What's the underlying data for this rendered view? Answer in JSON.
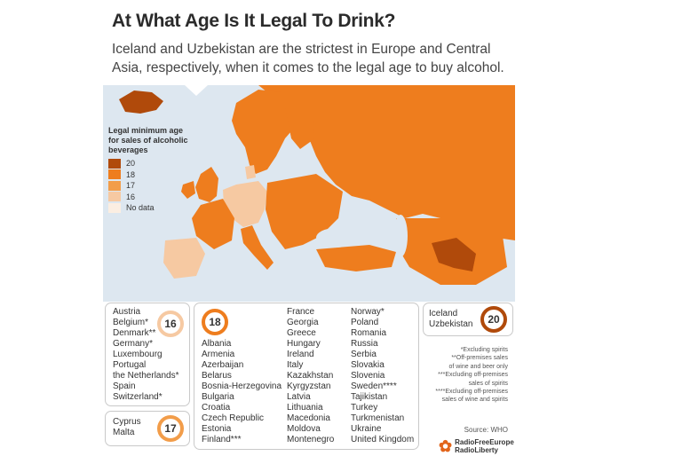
{
  "header": {
    "title": "At What Age Is It Legal To Drink?",
    "subtitle": "Iceland and Uzbekistan are the strictest in Europe and Central Asia, respectively, when it comes to the legal age to buy alcohol."
  },
  "legend": {
    "title": "Legal minimum age for sales of alcoholic beverages",
    "items": [
      {
        "label": "20",
        "color": "#b04a0b"
      },
      {
        "label": "18",
        "color": "#ee7d1e"
      },
      {
        "label": "17",
        "color": "#f29d4a"
      },
      {
        "label": "16",
        "color": "#f6c9a2"
      },
      {
        "label": "No data",
        "color": "#fbeee2"
      }
    ]
  },
  "groups": {
    "age16": {
      "age": "16",
      "countries": [
        "Austria",
        "Belgium*",
        "Denmark**",
        "Germany*",
        "Luxembourg",
        "Portugal",
        "the Netherlands*",
        "Spain",
        "Switzerland*"
      ]
    },
    "age17": {
      "age": "17",
      "countries": [
        "Cyprus",
        "Malta"
      ]
    },
    "age18": {
      "age": "18",
      "col1": [
        "Albania",
        "Armenia",
        "Azerbaijan",
        "Belarus",
        "Bosnia-Herzegovina",
        "Bulgaria",
        "Croatia",
        "Czech Republic",
        "Estonia",
        "Finland***"
      ],
      "col2": [
        "France",
        "Georgia",
        "Greece",
        "Hungary",
        "Ireland",
        "Italy",
        "Kazakhstan",
        "Kyrgyzstan",
        "Latvia",
        "Lithuania",
        "Macedonia",
        "Moldova",
        "Montenegro"
      ],
      "col3": [
        "Norway*",
        "Poland",
        "Romania",
        "Russia",
        "Serbia",
        "Slovakia",
        "Slovenia",
        "Sweden****",
        "Tajikistan",
        "Turkey",
        "Turkmenistan",
        "Ukraine",
        "United Kingdom"
      ]
    },
    "age20": {
      "age": "20",
      "countries": [
        "Iceland",
        "Uzbekistan"
      ]
    }
  },
  "footnotes": [
    "*Excluding spirits",
    "**Off-premises sales",
    "of wine and beer only",
    "***Excluding off-premises",
    "sales of spirits",
    "****Excluding off-premises",
    "sales of wine and spirits"
  ],
  "source": "Source: WHO",
  "logo": {
    "line1": "RadioFreeEurope",
    "line2": "RadioLiberty"
  },
  "colors": {
    "sea": "#dde7f0",
    "age18": "#ee7d1e",
    "age16": "#f6c9a2",
    "age20": "#b04a0b",
    "nodata": "#fbeee2"
  }
}
